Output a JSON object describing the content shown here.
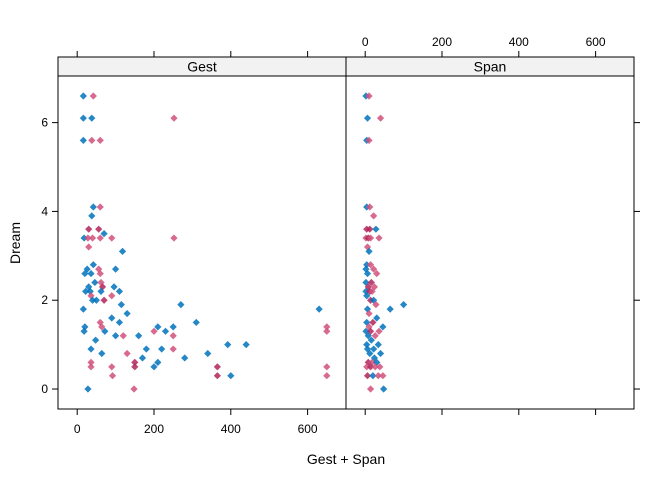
{
  "chart_data": {
    "type": "scatter",
    "xlabel": "Gest + Span",
    "ylabel": "Dream",
    "xlim": [
      -50,
      700
    ],
    "ylim": [
      -0.45,
      7.05
    ],
    "x_ticks": [
      0,
      200,
      400,
      600
    ],
    "y_ticks": [
      0,
      2,
      4,
      6
    ],
    "x_tick_labels": [
      "0",
      "200",
      "400",
      "600"
    ],
    "y_tick_labels": [
      "0",
      "2",
      "4",
      "6"
    ],
    "colors": {
      "blue": "#0072BD",
      "pink": "#D0507A",
      "crimson": "#B0245A"
    },
    "panels": [
      {
        "strip": "Gest",
        "points": [
          {
            "x": 16,
            "y": 6.6,
            "c": "blue"
          },
          {
            "x": 42,
            "y": 6.6,
            "c": "pink"
          },
          {
            "x": 16,
            "y": 6.1,
            "c": "blue"
          },
          {
            "x": 38,
            "y": 6.1,
            "c": "blue"
          },
          {
            "x": 252,
            "y": 6.1,
            "c": "pink"
          },
          {
            "x": 16,
            "y": 5.6,
            "c": "blue"
          },
          {
            "x": 38,
            "y": 5.6,
            "c": "pink"
          },
          {
            "x": 60,
            "y": 5.6,
            "c": "pink"
          },
          {
            "x": 42,
            "y": 4.1,
            "c": "blue"
          },
          {
            "x": 60,
            "y": 4.1,
            "c": "pink"
          },
          {
            "x": 38,
            "y": 3.9,
            "c": "blue"
          },
          {
            "x": 30,
            "y": 3.6,
            "c": "crimson"
          },
          {
            "x": 56,
            "y": 3.6,
            "c": "crimson"
          },
          {
            "x": 70,
            "y": 3.5,
            "c": "blue"
          },
          {
            "x": 18,
            "y": 3.4,
            "c": "blue"
          },
          {
            "x": 28,
            "y": 3.4,
            "c": "pink"
          },
          {
            "x": 40,
            "y": 3.4,
            "c": "pink"
          },
          {
            "x": 60,
            "y": 3.4,
            "c": "pink"
          },
          {
            "x": 90,
            "y": 3.4,
            "c": "pink"
          },
          {
            "x": 252,
            "y": 3.4,
            "c": "pink"
          },
          {
            "x": 30,
            "y": 3.2,
            "c": "pink"
          },
          {
            "x": 118,
            "y": 3.1,
            "c": "blue"
          },
          {
            "x": 42,
            "y": 2.8,
            "c": "blue"
          },
          {
            "x": 26,
            "y": 2.7,
            "c": "blue"
          },
          {
            "x": 56,
            "y": 2.7,
            "c": "pink"
          },
          {
            "x": 100,
            "y": 2.7,
            "c": "blue"
          },
          {
            "x": 20,
            "y": 2.6,
            "c": "blue"
          },
          {
            "x": 36,
            "y": 2.6,
            "c": "blue"
          },
          {
            "x": 60,
            "y": 2.6,
            "c": "pink"
          },
          {
            "x": 46,
            "y": 2.4,
            "c": "blue"
          },
          {
            "x": 62,
            "y": 2.4,
            "c": "pink"
          },
          {
            "x": 30,
            "y": 2.3,
            "c": "blue"
          },
          {
            "x": 66,
            "y": 2.3,
            "c": "crimson"
          },
          {
            "x": 96,
            "y": 2.3,
            "c": "blue"
          },
          {
            "x": 22,
            "y": 2.2,
            "c": "blue"
          },
          {
            "x": 34,
            "y": 2.2,
            "c": "blue"
          },
          {
            "x": 62,
            "y": 2.2,
            "c": "blue"
          },
          {
            "x": 110,
            "y": 2.2,
            "c": "blue"
          },
          {
            "x": 36,
            "y": 2.1,
            "c": "pink"
          },
          {
            "x": 90,
            "y": 2.1,
            "c": "pink"
          },
          {
            "x": 40,
            "y": 2.0,
            "c": "blue"
          },
          {
            "x": 50,
            "y": 2.0,
            "c": "blue"
          },
          {
            "x": 70,
            "y": 2.0,
            "c": "crimson"
          },
          {
            "x": 115,
            "y": 1.9,
            "c": "blue"
          },
          {
            "x": 270,
            "y": 1.9,
            "c": "blue"
          },
          {
            "x": 16,
            "y": 1.8,
            "c": "blue"
          },
          {
            "x": 630,
            "y": 1.8,
            "c": "blue"
          },
          {
            "x": 130,
            "y": 1.7,
            "c": "blue"
          },
          {
            "x": 90,
            "y": 1.6,
            "c": "blue"
          },
          {
            "x": 310,
            "y": 1.5,
            "c": "blue"
          },
          {
            "x": 60,
            "y": 1.5,
            "c": "pink"
          },
          {
            "x": 110,
            "y": 1.5,
            "c": "blue"
          },
          {
            "x": 20,
            "y": 1.4,
            "c": "blue"
          },
          {
            "x": 64,
            "y": 1.4,
            "c": "pink"
          },
          {
            "x": 650,
            "y": 1.4,
            "c": "pink"
          },
          {
            "x": 210,
            "y": 1.4,
            "c": "blue"
          },
          {
            "x": 250,
            "y": 1.4,
            "c": "blue"
          },
          {
            "x": 230,
            "y": 1.3,
            "c": "blue"
          },
          {
            "x": 200,
            "y": 1.3,
            "c": "pink"
          },
          {
            "x": 18,
            "y": 1.3,
            "c": "blue"
          },
          {
            "x": 72,
            "y": 1.3,
            "c": "blue"
          },
          {
            "x": 650,
            "y": 1.3,
            "c": "pink"
          },
          {
            "x": 250,
            "y": 1.2,
            "c": "pink"
          },
          {
            "x": 160,
            "y": 1.2,
            "c": "blue"
          },
          {
            "x": 100,
            "y": 1.2,
            "c": "blue"
          },
          {
            "x": 120,
            "y": 1.2,
            "c": "pink"
          },
          {
            "x": 48,
            "y": 1.1,
            "c": "blue"
          },
          {
            "x": 392,
            "y": 1.0,
            "c": "blue"
          },
          {
            "x": 440,
            "y": 1.0,
            "c": "blue"
          },
          {
            "x": 36,
            "y": 0.9,
            "c": "blue"
          },
          {
            "x": 220,
            "y": 0.9,
            "c": "blue"
          },
          {
            "x": 250,
            "y": 0.9,
            "c": "pink"
          },
          {
            "x": 180,
            "y": 0.9,
            "c": "blue"
          },
          {
            "x": 64,
            "y": 0.8,
            "c": "blue"
          },
          {
            "x": 340,
            "y": 0.8,
            "c": "blue"
          },
          {
            "x": 130,
            "y": 0.8,
            "c": "pink"
          },
          {
            "x": 280,
            "y": 0.7,
            "c": "blue"
          },
          {
            "x": 170,
            "y": 0.7,
            "c": "blue"
          },
          {
            "x": 36,
            "y": 0.6,
            "c": "pink"
          },
          {
            "x": 150,
            "y": 0.6,
            "c": "crimson"
          },
          {
            "x": 210,
            "y": 0.6,
            "c": "blue"
          },
          {
            "x": 200,
            "y": 0.5,
            "c": "blue"
          },
          {
            "x": 150,
            "y": 0.5,
            "c": "crimson"
          },
          {
            "x": 36,
            "y": 0.5,
            "c": "pink"
          },
          {
            "x": 90,
            "y": 0.5,
            "c": "pink"
          },
          {
            "x": 365,
            "y": 0.5,
            "c": "crimson"
          },
          {
            "x": 650,
            "y": 0.5,
            "c": "pink"
          },
          {
            "x": 92,
            "y": 0.3,
            "c": "pink"
          },
          {
            "x": 400,
            "y": 0.3,
            "c": "blue"
          },
          {
            "x": 365,
            "y": 0.3,
            "c": "crimson"
          },
          {
            "x": 650,
            "y": 0.3,
            "c": "pink"
          },
          {
            "x": 28,
            "y": 0.0,
            "c": "blue"
          },
          {
            "x": 148,
            "y": 0.0,
            "c": "pink"
          }
        ]
      },
      {
        "strip": "Span",
        "points": [
          {
            "x": 2,
            "y": 6.6,
            "c": "blue"
          },
          {
            "x": 10,
            "y": 6.6,
            "c": "pink"
          },
          {
            "x": 6,
            "y": 6.1,
            "c": "blue"
          },
          {
            "x": 40,
            "y": 6.1,
            "c": "pink"
          },
          {
            "x": 4,
            "y": 5.6,
            "c": "blue"
          },
          {
            "x": 10,
            "y": 5.6,
            "c": "pink"
          },
          {
            "x": 4,
            "y": 4.1,
            "c": "blue"
          },
          {
            "x": 12,
            "y": 4.1,
            "c": "pink"
          },
          {
            "x": 22,
            "y": 3.9,
            "c": "pink"
          },
          {
            "x": 4,
            "y": 3.6,
            "c": "crimson"
          },
          {
            "x": 12,
            "y": 3.6,
            "c": "crimson"
          },
          {
            "x": 28,
            "y": 3.6,
            "c": "blue"
          },
          {
            "x": 2,
            "y": 3.4,
            "c": "pink"
          },
          {
            "x": 8,
            "y": 3.4,
            "c": "crimson"
          },
          {
            "x": 14,
            "y": 3.4,
            "c": "pink"
          },
          {
            "x": 36,
            "y": 3.4,
            "c": "pink"
          },
          {
            "x": 6,
            "y": 3.2,
            "c": "pink"
          },
          {
            "x": 10,
            "y": 3.1,
            "c": "blue"
          },
          {
            "x": 4,
            "y": 2.8,
            "c": "blue"
          },
          {
            "x": 14,
            "y": 2.8,
            "c": "pink"
          },
          {
            "x": 2,
            "y": 2.7,
            "c": "blue"
          },
          {
            "x": 22,
            "y": 2.7,
            "c": "pink"
          },
          {
            "x": 6,
            "y": 2.6,
            "c": "blue"
          },
          {
            "x": 30,
            "y": 2.6,
            "c": "pink"
          },
          {
            "x": 2,
            "y": 2.4,
            "c": "blue"
          },
          {
            "x": 16,
            "y": 2.4,
            "c": "crimson"
          },
          {
            "x": 8,
            "y": 2.3,
            "c": "crimson"
          },
          {
            "x": 24,
            "y": 2.3,
            "c": "pink"
          },
          {
            "x": 2,
            "y": 2.2,
            "c": "blue"
          },
          {
            "x": 12,
            "y": 2.2,
            "c": "crimson"
          },
          {
            "x": 18,
            "y": 2.2,
            "c": "pink"
          },
          {
            "x": 4,
            "y": 2.1,
            "c": "blue"
          },
          {
            "x": 14,
            "y": 2.0,
            "c": "crimson"
          },
          {
            "x": 22,
            "y": 2.0,
            "c": "blue"
          },
          {
            "x": 100,
            "y": 1.9,
            "c": "blue"
          },
          {
            "x": 28,
            "y": 1.9,
            "c": "pink"
          },
          {
            "x": 6,
            "y": 1.8,
            "c": "blue"
          },
          {
            "x": 65,
            "y": 1.8,
            "c": "blue"
          },
          {
            "x": 10,
            "y": 1.7,
            "c": "pink"
          },
          {
            "x": 30,
            "y": 1.6,
            "c": "blue"
          },
          {
            "x": 4,
            "y": 1.5,
            "c": "blue"
          },
          {
            "x": 20,
            "y": 1.5,
            "c": "crimson"
          },
          {
            "x": 10,
            "y": 1.4,
            "c": "pink"
          },
          {
            "x": 46,
            "y": 1.4,
            "c": "blue"
          },
          {
            "x": 2,
            "y": 1.3,
            "c": "blue"
          },
          {
            "x": 14,
            "y": 1.3,
            "c": "crimson"
          },
          {
            "x": 36,
            "y": 1.3,
            "c": "pink"
          },
          {
            "x": 8,
            "y": 1.2,
            "c": "blue"
          },
          {
            "x": 26,
            "y": 1.2,
            "c": "pink"
          },
          {
            "x": 16,
            "y": 1.1,
            "c": "blue"
          },
          {
            "x": 4,
            "y": 1.0,
            "c": "blue"
          },
          {
            "x": 34,
            "y": 1.0,
            "c": "blue"
          },
          {
            "x": 6,
            "y": 0.9,
            "c": "blue"
          },
          {
            "x": 22,
            "y": 0.9,
            "c": "blue"
          },
          {
            "x": 12,
            "y": 0.8,
            "c": "blue"
          },
          {
            "x": 40,
            "y": 0.8,
            "c": "blue"
          },
          {
            "x": 24,
            "y": 0.7,
            "c": "blue"
          },
          {
            "x": 8,
            "y": 0.6,
            "c": "crimson"
          },
          {
            "x": 18,
            "y": 0.6,
            "c": "pink"
          },
          {
            "x": 30,
            "y": 0.6,
            "c": "blue"
          },
          {
            "x": 4,
            "y": 0.5,
            "c": "pink"
          },
          {
            "x": 14,
            "y": 0.5,
            "c": "crimson"
          },
          {
            "x": 26,
            "y": 0.5,
            "c": "pink"
          },
          {
            "x": 38,
            "y": 0.5,
            "c": "pink"
          },
          {
            "x": 6,
            "y": 0.3,
            "c": "crimson"
          },
          {
            "x": 20,
            "y": 0.3,
            "c": "blue"
          },
          {
            "x": 34,
            "y": 0.3,
            "c": "pink"
          },
          {
            "x": 46,
            "y": 0.3,
            "c": "pink"
          },
          {
            "x": 14,
            "y": 0.0,
            "c": "pink"
          },
          {
            "x": 48,
            "y": 0.0,
            "c": "blue"
          }
        ]
      }
    ]
  }
}
